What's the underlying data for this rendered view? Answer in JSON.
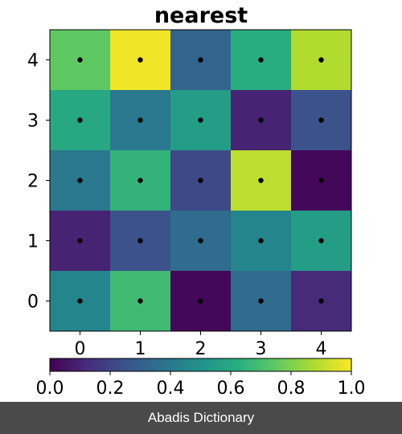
{
  "chart_data": {
    "type": "heatmap",
    "title": "nearest",
    "x": [
      0,
      1,
      2,
      3,
      4
    ],
    "y": [
      0,
      1,
      2,
      3,
      4
    ],
    "xlim": [
      -0.5,
      4.5
    ],
    "ylim": [
      -0.5,
      4.5
    ],
    "values": [
      [
        0.45,
        0.68,
        0.02,
        0.35,
        0.12
      ],
      [
        0.1,
        0.25,
        0.35,
        0.45,
        0.55
      ],
      [
        0.4,
        0.65,
        0.22,
        0.9,
        0.02
      ],
      [
        0.6,
        0.4,
        0.55,
        0.1,
        0.25
      ],
      [
        0.75,
        0.98,
        0.32,
        0.62,
        0.88
      ]
    ],
    "markers": "black dot at each cell center",
    "colormap": "viridis",
    "colorbar": {
      "position": "bottom",
      "range": [
        0.0,
        1.0
      ],
      "ticks": [
        "0.0",
        "0.2",
        "0.4",
        "0.6",
        "0.8",
        "1.0"
      ]
    },
    "xlabel": "",
    "ylabel": ""
  },
  "footer": {
    "text": "Abadis Dictionary"
  }
}
